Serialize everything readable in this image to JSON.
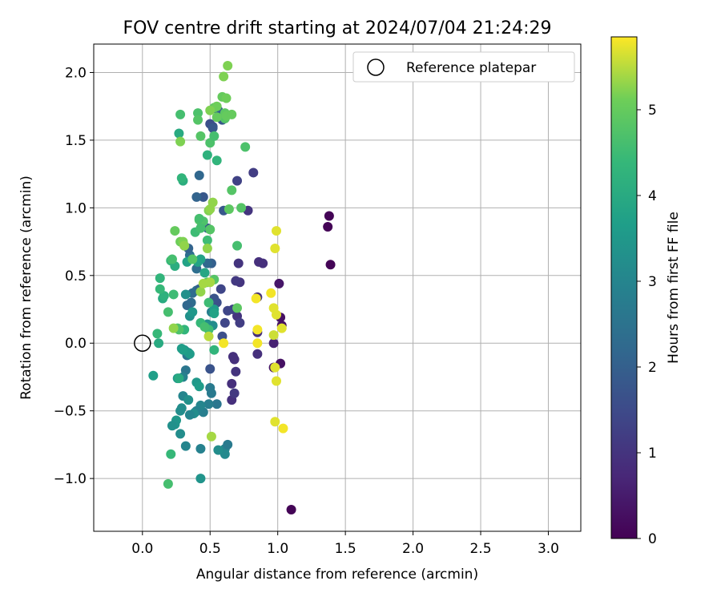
{
  "chart_data": {
    "type": "scatter",
    "title": "FOV centre drift starting at 2024/07/04 21:24:29",
    "xlabel": "Angular distance from reference (arcmin)",
    "ylabel": "Rotation from reference (arcmin)",
    "xlim": [
      -0.36,
      3.24
    ],
    "ylim": [
      -1.39,
      2.21
    ],
    "xticks": [
      0.0,
      0.5,
      1.0,
      1.5,
      2.0,
      2.5,
      3.0
    ],
    "xtick_labels": [
      "0.0",
      "0.5",
      "1.0",
      "1.5",
      "2.0",
      "2.5",
      "3.0"
    ],
    "yticks": [
      -1.0,
      -0.5,
      0.0,
      0.5,
      1.0,
      1.5,
      2.0
    ],
    "ytick_labels": [
      "−1.0",
      "−0.5",
      "0.0",
      "0.5",
      "1.0",
      "1.5",
      "2.0"
    ],
    "grid": true,
    "legend": {
      "position": "top-right",
      "entries": [
        "Reference platepar"
      ]
    },
    "reference_point": {
      "x": 0.0,
      "y": 0.0
    },
    "colorbar": {
      "label": "Hours from first FF file",
      "range": [
        0,
        5.85
      ],
      "ticks": [
        0,
        1,
        2,
        3,
        4,
        5
      ],
      "tick_labels": [
        "0",
        "1",
        "2",
        "3",
        "4",
        "5"
      ],
      "colormap": "viridis"
    },
    "points": [
      [
        1.38,
        0.94,
        0.05
      ],
      [
        1.37,
        0.86,
        0.05
      ],
      [
        1.39,
        0.58,
        0.05
      ],
      [
        1.1,
        -1.23,
        0.05
      ],
      [
        1.02,
        0.19,
        0.3
      ],
      [
        1.03,
        0.13,
        0.3
      ],
      [
        1.02,
        -0.15,
        0.3
      ],
      [
        1.01,
        0.44,
        0.4
      ],
      [
        0.97,
        -0.18,
        0.4
      ],
      [
        0.97,
        0.0,
        0.6
      ],
      [
        0.89,
        0.59,
        0.9
      ],
      [
        0.86,
        0.6,
        0.9
      ],
      [
        0.85,
        -0.08,
        0.9
      ],
      [
        0.85,
        0.08,
        0.9
      ],
      [
        0.85,
        0.34,
        0.9
      ],
      [
        0.78,
        0.98,
        1.0
      ],
      [
        0.82,
        1.26,
        1.2
      ],
      [
        0.7,
        1.2,
        1.3
      ],
      [
        0.71,
        0.59,
        1.0
      ],
      [
        0.72,
        0.45,
        1.0
      ],
      [
        0.69,
        0.46,
        1.1
      ],
      [
        0.7,
        0.2,
        1.0
      ],
      [
        0.72,
        0.15,
        1.2
      ],
      [
        0.69,
        -0.21,
        1.0
      ],
      [
        0.68,
        -0.12,
        0.9
      ],
      [
        0.67,
        -0.1,
        0.9
      ],
      [
        0.67,
        0.25,
        1.3
      ],
      [
        0.66,
        -0.3,
        0.9
      ],
      [
        0.66,
        -0.42,
        0.9
      ],
      [
        0.68,
        -0.37,
        1.1
      ],
      [
        0.63,
        0.24,
        1.4
      ],
      [
        0.61,
        0.15,
        1.4
      ],
      [
        0.6,
        0.98,
        1.8
      ],
      [
        0.59,
        1.65,
        1.8
      ],
      [
        0.56,
        1.72,
        2.0
      ],
      [
        0.58,
        0.4,
        1.4
      ],
      [
        0.55,
        0.3,
        1.6
      ],
      [
        0.53,
        0.33,
        1.7
      ],
      [
        0.59,
        0.05,
        1.6
      ],
      [
        0.52,
        1.6,
        1.7
      ],
      [
        0.5,
        1.62,
        1.6
      ],
      [
        0.52,
        1.59,
        1.8
      ],
      [
        0.5,
        -0.19,
        1.7
      ],
      [
        0.51,
        0.59,
        2.0
      ],
      [
        0.48,
        0.59,
        2.2
      ],
      [
        0.48,
        0.85,
        2.0
      ],
      [
        0.45,
        0.87,
        1.6
      ],
      [
        0.44,
        0.88,
        1.8
      ],
      [
        0.45,
        1.08,
        1.8
      ],
      [
        0.4,
        1.08,
        2.1
      ],
      [
        0.42,
        1.24,
        2.2
      ],
      [
        0.4,
        0.55,
        2.4
      ],
      [
        0.4,
        0.39,
        2.5
      ],
      [
        0.42,
        0.4,
        2.0
      ],
      [
        0.37,
        0.37,
        2.3
      ],
      [
        0.36,
        0.3,
        2.3
      ],
      [
        0.33,
        0.28,
        2.2
      ],
      [
        0.35,
        0.65,
        2.4
      ],
      [
        0.34,
        0.7,
        2.1
      ],
      [
        0.31,
        0.72,
        2.3
      ],
      [
        0.51,
        0.23,
        2.8
      ],
      [
        0.52,
        0.13,
        3.2
      ],
      [
        0.48,
        0.14,
        3.2
      ],
      [
        0.55,
        -0.45,
        2.6
      ],
      [
        0.5,
        -0.33,
        2.7
      ],
      [
        0.51,
        -0.37,
        2.7
      ],
      [
        0.49,
        -0.45,
        2.8
      ],
      [
        0.45,
        -0.51,
        2.8
      ],
      [
        0.43,
        -0.46,
        3.0
      ],
      [
        0.39,
        -0.51,
        3.1
      ],
      [
        0.4,
        -0.5,
        2.9
      ],
      [
        0.38,
        -0.52,
        3.2
      ],
      [
        0.35,
        -0.53,
        3.0
      ],
      [
        0.32,
        -0.06,
        2.7
      ],
      [
        0.33,
        -0.09,
        2.6
      ],
      [
        0.32,
        -0.2,
        2.6
      ],
      [
        0.3,
        -0.25,
        2.9
      ],
      [
        0.3,
        -0.39,
        3.0
      ],
      [
        0.29,
        -0.48,
        3.2
      ],
      [
        0.28,
        -0.5,
        3.2
      ],
      [
        0.28,
        -0.67,
        3.2
      ],
      [
        0.32,
        -0.76,
        3.0
      ],
      [
        0.34,
        -0.42,
        3.3
      ],
      [
        0.31,
        -0.05,
        3.3
      ],
      [
        0.32,
        0.36,
        3.3
      ],
      [
        0.35,
        0.2,
        3.3
      ],
      [
        0.37,
        0.23,
        3.5
      ],
      [
        0.43,
        -0.78,
        2.9
      ],
      [
        0.6,
        -0.8,
        3.1
      ],
      [
        0.61,
        -0.78,
        3.0
      ],
      [
        0.63,
        -0.75,
        2.7
      ],
      [
        0.61,
        -0.82,
        3.1
      ],
      [
        0.56,
        -0.79,
        3.2
      ],
      [
        0.43,
        -1.0,
        3.4
      ],
      [
        0.25,
        -0.57,
        3.5
      ],
      [
        0.24,
        -0.6,
        3.4
      ],
      [
        0.22,
        -0.61,
        3.3
      ],
      [
        0.26,
        -0.26,
        3.5
      ],
      [
        0.34,
        -0.07,
        3.5
      ],
      [
        0.35,
        -0.08,
        3.6
      ],
      [
        0.29,
        -0.04,
        3.6
      ],
      [
        0.3,
        -0.05,
        3.7
      ],
      [
        0.33,
        0.6,
        3.8
      ],
      [
        0.4,
        -0.29,
        3.5
      ],
      [
        0.42,
        -0.32,
        3.6
      ],
      [
        0.53,
        0.25,
        3.6
      ],
      [
        0.53,
        0.22,
        3.8
      ],
      [
        0.43,
        0.62,
        3.8
      ],
      [
        0.46,
        0.52,
        3.9
      ],
      [
        0.41,
        0.6,
        3.8
      ],
      [
        0.08,
        -0.24,
        3.7
      ],
      [
        0.15,
        0.33,
        4.0
      ],
      [
        0.12,
        0.0,
        4.0
      ],
      [
        0.16,
        0.35,
        4.2
      ],
      [
        0.13,
        0.4,
        4.4
      ],
      [
        0.13,
        0.48,
        4.3
      ],
      [
        0.21,
        0.61,
        4.4
      ],
      [
        0.24,
        0.57,
        4.1
      ],
      [
        0.27,
        1.55,
        4.0
      ],
      [
        0.3,
        1.2,
        4.1
      ],
      [
        0.29,
        1.22,
        4.3
      ],
      [
        0.48,
        1.39,
        4.2
      ],
      [
        0.55,
        1.35,
        4.3
      ],
      [
        0.53,
        -0.05,
        4.3
      ],
      [
        0.49,
        0.1,
        4.5
      ],
      [
        0.43,
        0.15,
        4.4
      ],
      [
        0.46,
        0.12,
        4.6
      ],
      [
        0.23,
        0.36,
        4.5
      ],
      [
        0.31,
        0.1,
        4.3
      ],
      [
        0.48,
        0.76,
        4.5
      ],
      [
        0.49,
        0.3,
        4.5
      ],
      [
        0.27,
        -0.26,
        4.0
      ],
      [
        0.21,
        -0.82,
        4.4
      ],
      [
        0.19,
        -1.04,
        4.6
      ],
      [
        0.19,
        0.23,
        4.6
      ],
      [
        0.22,
        0.62,
        4.6
      ],
      [
        0.26,
        0.11,
        4.8
      ],
      [
        0.27,
        0.1,
        4.7
      ],
      [
        0.11,
        0.07,
        4.4
      ],
      [
        0.28,
        1.69,
        4.6
      ],
      [
        0.39,
        0.82,
        4.5
      ],
      [
        0.37,
        0.62,
        4.8
      ],
      [
        0.45,
        0.9,
        4.7
      ],
      [
        0.42,
        0.91,
        4.8
      ],
      [
        0.42,
        0.92,
        4.6
      ],
      [
        0.43,
        0.85,
        4.6
      ],
      [
        0.41,
        1.7,
        4.7
      ],
      [
        0.41,
        1.65,
        4.8
      ],
      [
        0.5,
        1.48,
        4.7
      ],
      [
        0.53,
        1.53,
        4.6
      ],
      [
        0.53,
        0.47,
        4.8
      ],
      [
        0.48,
        0.45,
        4.9
      ],
      [
        0.5,
        0.84,
        4.8
      ],
      [
        0.43,
        1.53,
        4.8
      ],
      [
        0.64,
        0.99,
        4.9
      ],
      [
        0.66,
        1.13,
        4.8
      ],
      [
        0.7,
        0.72,
        4.6
      ],
      [
        0.7,
        0.26,
        4.9
      ],
      [
        0.76,
        1.45,
        4.7
      ],
      [
        0.73,
        1.0,
        4.8
      ],
      [
        0.61,
        1.66,
        4.8
      ],
      [
        0.61,
        1.7,
        4.9
      ],
      [
        0.62,
        1.68,
        5.0
      ],
      [
        0.66,
        1.69,
        5.0
      ],
      [
        0.55,
        1.67,
        5.0
      ],
      [
        0.53,
        1.74,
        4.9
      ],
      [
        0.59,
        1.82,
        5.0
      ],
      [
        0.62,
        1.81,
        5.1
      ],
      [
        0.6,
        1.97,
        5.2
      ],
      [
        0.63,
        2.05,
        5.2
      ],
      [
        0.55,
        1.75,
        5.1
      ],
      [
        0.5,
        1.72,
        5.2
      ],
      [
        0.24,
        0.83,
        5.0
      ],
      [
        0.28,
        0.75,
        5.1
      ],
      [
        0.3,
        0.75,
        5.2
      ],
      [
        0.28,
        1.49,
        5.2
      ],
      [
        0.31,
        0.72,
        5.3
      ],
      [
        0.48,
        0.7,
        5.3
      ],
      [
        0.49,
        0.98,
        5.2
      ],
      [
        0.5,
        0.99,
        5.3
      ],
      [
        0.52,
        1.04,
        5.3
      ],
      [
        0.43,
        0.38,
        5.3
      ],
      [
        0.45,
        0.44,
        5.4
      ],
      [
        0.5,
        0.45,
        5.4
      ],
      [
        0.49,
        0.05,
        5.5
      ],
      [
        0.23,
        0.11,
        5.3
      ],
      [
        0.51,
        -0.69,
        5.4
      ],
      [
        0.99,
        0.83,
        5.7
      ],
      [
        0.98,
        0.7,
        5.7
      ],
      [
        0.95,
        0.37,
        5.8
      ],
      [
        0.97,
        0.26,
        5.7
      ],
      [
        0.99,
        0.21,
        5.7
      ],
      [
        1.03,
        0.11,
        5.7
      ],
      [
        0.97,
        0.06,
        5.6
      ],
      [
        0.85,
        0.1,
        5.8
      ],
      [
        0.85,
        0.0,
        5.8
      ],
      [
        0.84,
        0.33,
        5.8
      ],
      [
        0.98,
        -0.18,
        5.7
      ],
      [
        0.99,
        -0.28,
        5.7
      ],
      [
        0.98,
        -0.58,
        5.7
      ],
      [
        1.04,
        -0.63,
        5.8
      ],
      [
        0.6,
        0.0,
        5.8
      ]
    ]
  }
}
